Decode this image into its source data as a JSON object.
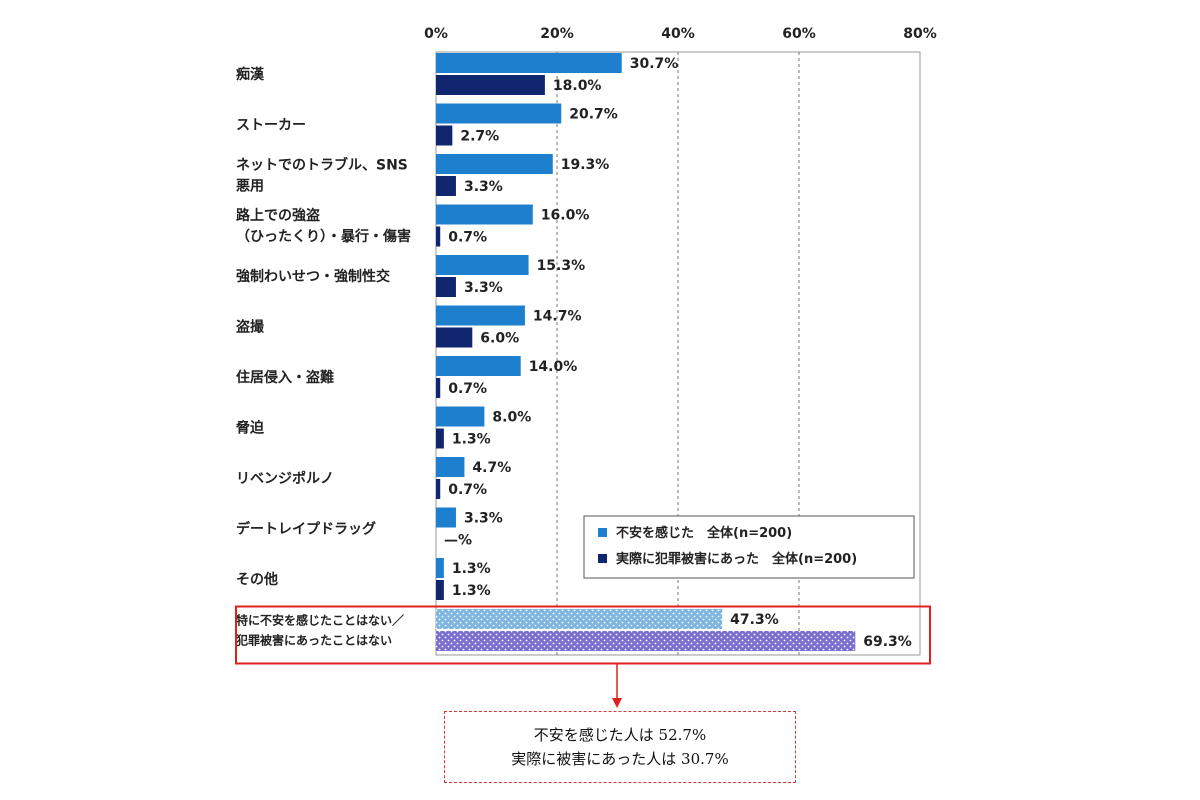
{
  "chart_data": {
    "type": "bar",
    "orientation": "horizontal",
    "x_ticks": [
      "0%",
      "20%",
      "40%",
      "60%",
      "80%"
    ],
    "xlim": [
      0,
      80
    ],
    "grid": true,
    "legend_position": "inside-bottom-right",
    "categories": [
      [
        "痴漢"
      ],
      [
        "ストーカー"
      ],
      [
        "ネットでのトラブル、SNS",
        "悪用"
      ],
      [
        "路上での強盗",
        "（ひったくり）・暴行・傷害"
      ],
      [
        "強制わいせつ・強制性交"
      ],
      [
        "盗撮"
      ],
      [
        "住居侵入・盗難"
      ],
      [
        "脅迫"
      ],
      [
        "リベンジポルノ"
      ],
      [
        "デートレイプドラッグ"
      ],
      [
        "その他"
      ],
      [
        "特に不安を感じたことはない／",
        "犯罪被害にあったことはない"
      ]
    ],
    "series": [
      {
        "name": "不安を感じた　全体(n=200)",
        "color": "#1f7fcf",
        "values": [
          30.7,
          20.7,
          19.3,
          16.0,
          15.3,
          14.7,
          14.0,
          8.0,
          4.7,
          3.3,
          1.3,
          47.3
        ],
        "labels": [
          "30.7%",
          "20.7%",
          "19.3%",
          "16.0%",
          "15.3%",
          "14.7%",
          "14.0%",
          "8.0%",
          "4.7%",
          "3.3%",
          "1.3%",
          "47.3%"
        ]
      },
      {
        "name": "実際に犯罪被害にあった　全体(n=200)",
        "color": "#10266e",
        "values": [
          18.0,
          2.7,
          3.3,
          0.7,
          3.3,
          6.0,
          0.7,
          1.3,
          0.7,
          0,
          1.3,
          69.3
        ],
        "labels": [
          "18.0%",
          "2.7%",
          "3.3%",
          "0.7%",
          "3.3%",
          "6.0%",
          "0.7%",
          "1.3%",
          "0.7%",
          "—%",
          "1.3%",
          "69.3%"
        ]
      }
    ],
    "patterned_last_category": {
      "series0_color": "#7fb6df",
      "series1_color": "#7a6fcf"
    },
    "highlight_color": "#e02020"
  },
  "summary": {
    "line1": "不安を感じた人は 52.7%",
    "line2": "実際に被害にあった人は 30.7%"
  }
}
